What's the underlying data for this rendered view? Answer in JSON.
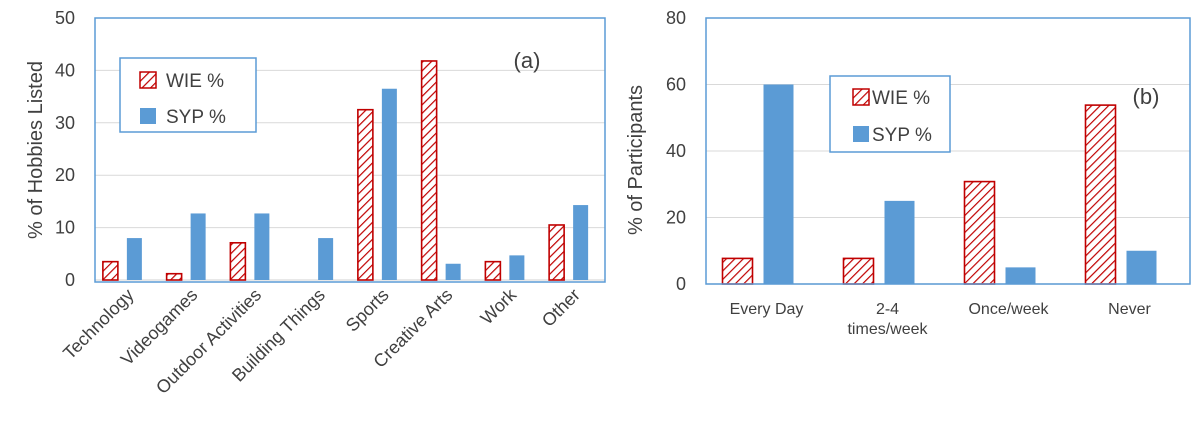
{
  "colors": {
    "wie_stroke": "#c00000",
    "syp_fill": "#5b9bd5",
    "frame": "#5b9bd5",
    "grid": "#d9d9d9",
    "text": "#404040"
  },
  "chart_data": [
    {
      "type": "bar",
      "panel_label": "(a)",
      "ylabel": "% of Hobbies Listed",
      "ylim": [
        0,
        50
      ],
      "yticks": [
        "0",
        "10",
        "20",
        "30",
        "40",
        "50"
      ],
      "grid": true,
      "legend_position": "top-left",
      "categories": [
        "Technology",
        "Videogames",
        "Outdoor Activities",
        "Building Things",
        "Sports",
        "Creative Arts",
        "Work",
        "Other"
      ],
      "series": [
        {
          "name": "WIE %",
          "pattern": "hatched",
          "values": [
            3.5,
            1.2,
            7.1,
            0,
            32.5,
            41.8,
            3.5,
            10.5
          ]
        },
        {
          "name": "SYP %",
          "pattern": "solid",
          "values": [
            8.0,
            12.7,
            12.7,
            8.0,
            36.5,
            3.1,
            4.7,
            14.3
          ]
        }
      ]
    },
    {
      "type": "bar",
      "panel_label": "(b)",
      "ylabel": "% of Participants",
      "ylim": [
        0,
        80
      ],
      "yticks": [
        "0",
        "20",
        "40",
        "60",
        "80"
      ],
      "grid": true,
      "legend_position": "top-center",
      "categories": [
        [
          "Every Day"
        ],
        [
          "2-4",
          "times/week"
        ],
        [
          "Once/week"
        ],
        [
          "Never"
        ]
      ],
      "series": [
        {
          "name": "WIE %",
          "pattern": "hatched",
          "values": [
            7.7,
            7.7,
            30.8,
            53.8
          ]
        },
        {
          "name": "SYP %",
          "pattern": "solid",
          "values": [
            60,
            25,
            5,
            10
          ]
        }
      ]
    }
  ]
}
